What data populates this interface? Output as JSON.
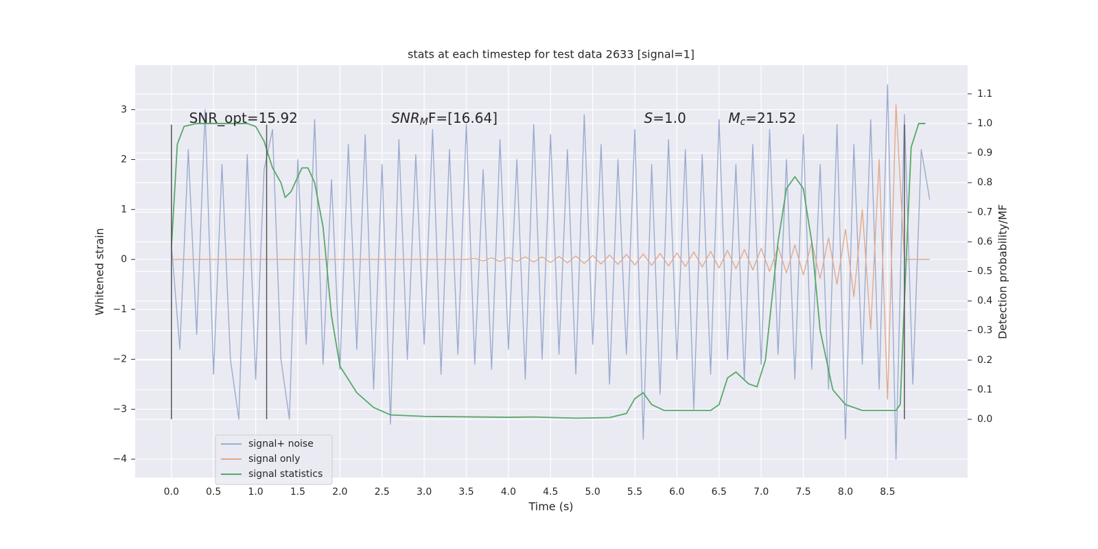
{
  "chart_data": {
    "type": "line",
    "title": "stats at each timestep for test data 2633 [signal=1]",
    "xlabel": "Time (s)",
    "ylabel": "Whitened strain",
    "y2label": "Detection probability/MF",
    "xlim": [
      -0.43,
      9.45
    ],
    "ylim": [
      -4.37,
      3.89
    ],
    "y2lim": [
      -0.197,
      1.197
    ],
    "xticks": [
      {
        "value": 0,
        "label": "0.0"
      },
      0.5,
      {
        "value": 1,
        "label": "1.0"
      },
      1.5,
      {
        "value": 2,
        "label": "2.0"
      },
      2.5,
      {
        "value": 3,
        "label": "3.0"
      },
      3.5,
      {
        "value": 4,
        "label": "4.0"
      },
      4.5,
      {
        "value": 5,
        "label": "5.0"
      },
      5.5,
      {
        "value": 6,
        "label": "6.0"
      },
      6.5,
      {
        "value": 7,
        "label": "7.0"
      },
      7.5,
      {
        "value": 8,
        "label": "8.0"
      },
      8.5
    ],
    "yticks": [
      {
        "value": -4,
        "label": "−4"
      },
      {
        "value": -3,
        "label": "−3"
      },
      {
        "value": -2,
        "label": "−2"
      },
      {
        "value": -1,
        "label": "−1"
      },
      0,
      1,
      2,
      3
    ],
    "y2ticks": [
      {
        "value": 0,
        "label": "0.0"
      },
      0.1,
      0.2,
      0.3,
      0.4,
      0.5,
      0.6,
      0.7,
      0.8,
      0.9,
      {
        "value": 1,
        "label": "1.0"
      },
      1.1
    ],
    "grid": true,
    "legend": "lower left",
    "x": [
      0,
      0.1,
      0.2,
      0.3,
      0.4,
      0.5,
      0.6,
      0.7,
      0.8,
      0.9,
      1,
      1.1,
      1.2,
      1.3,
      1.4,
      1.5,
      1.6,
      1.7,
      1.8,
      1.9,
      2,
      2.1,
      2.2,
      2.3,
      2.4,
      2.5,
      2.6,
      2.7,
      2.8,
      2.9,
      3,
      3.1,
      3.2,
      3.3,
      3.4,
      3.5,
      3.6,
      3.7,
      3.8,
      3.9,
      4,
      4.1,
      4.2,
      4.3,
      4.4,
      4.5,
      4.6,
      4.7,
      4.8,
      4.9,
      5,
      5.1,
      5.2,
      5.3,
      5.4,
      5.5,
      5.6,
      5.7,
      5.8,
      5.9,
      6,
      6.1,
      6.2,
      6.3,
      6.4,
      6.5,
      6.6,
      6.7,
      6.8,
      6.9,
      7,
      7.1,
      7.2,
      7.3,
      7.4,
      7.5,
      7.6,
      7.7,
      7.8,
      7.9,
      8,
      8.1,
      8.2,
      8.3,
      8.4,
      8.5,
      8.6,
      8.7,
      8.8,
      8.9,
      9
    ],
    "series": [
      {
        "name": "signal+ noise",
        "color": "#9aabcf",
        "values": [
          0.3,
          -1.8,
          2.2,
          -1.5,
          3.0,
          -2.3,
          1.9,
          -2.0,
          -3.2,
          2.1,
          -2.4,
          1.8,
          2.6,
          -2.0,
          -3.2,
          2.0,
          -1.7,
          2.8,
          -2.1,
          1.6,
          -2.2,
          2.3,
          -1.8,
          2.5,
          -2.6,
          1.9,
          -3.3,
          2.4,
          -2.0,
          2.1,
          -1.7,
          2.6,
          -2.3,
          2.2,
          -1.9,
          2.7,
          -2.1,
          1.8,
          -2.2,
          2.4,
          -1.8,
          2.0,
          -2.4,
          2.7,
          -2.0,
          2.5,
          -1.9,
          2.2,
          -2.3,
          2.9,
          -1.7,
          2.3,
          -2.5,
          2.0,
          -1.9,
          2.6,
          -3.6,
          1.9,
          -2.7,
          2.4,
          -2.0,
          2.2,
          -3.0,
          2.1,
          -2.3,
          2.8,
          -2.0,
          1.9,
          -2.4,
          2.3,
          -2.1,
          2.6,
          -1.9,
          2.0,
          -2.4,
          2.5,
          -2.2,
          1.9,
          -2.6,
          2.7,
          -3.6,
          2.3,
          -2.1,
          2.8,
          -2.6,
          3.5,
          -4.0,
          2.9,
          -2.5,
          2.2,
          1.2
        ]
      },
      {
        "name": "signal only",
        "color": "#e1a98b",
        "values": [
          0,
          0,
          0,
          0,
          0,
          0,
          0,
          0,
          0,
          0,
          0,
          0,
          0,
          0,
          0,
          0,
          0,
          0,
          0,
          0,
          0,
          0,
          0,
          0,
          0,
          0,
          0,
          0,
          0,
          0,
          0,
          0,
          0,
          0,
          0,
          0,
          0.02,
          -0.03,
          0.03,
          -0.04,
          0.04,
          -0.04,
          0.05,
          -0.05,
          0.05,
          -0.06,
          0.06,
          -0.07,
          0.07,
          -0.08,
          0.08,
          -0.09,
          0.09,
          -0.1,
          0.1,
          -0.11,
          0.11,
          -0.12,
          0.12,
          -0.13,
          0.13,
          -0.14,
          0.15,
          -0.15,
          0.16,
          -0.17,
          0.18,
          -0.19,
          0.2,
          -0.21,
          0.22,
          -0.24,
          0.25,
          -0.27,
          0.29,
          -0.31,
          0.34,
          -0.38,
          0.43,
          -0.5,
          0.6,
          -0.75,
          1.0,
          -1.4,
          2.0,
          -2.8,
          3.1,
          0,
          0,
          0,
          0
        ]
      },
      {
        "name": "signal statistics",
        "color": "#55a868",
        "axis": "y2",
        "x": [
          0,
          0.07,
          0.15,
          0.3,
          0.6,
          0.9,
          1.0,
          1.1,
          1.2,
          1.3,
          1.35,
          1.42,
          1.5,
          1.55,
          1.62,
          1.7,
          1.8,
          1.9,
          2.0,
          2.2,
          2.4,
          2.6,
          3.0,
          4.0,
          4.3,
          4.8,
          5.2,
          5.4,
          5.5,
          5.6,
          5.7,
          5.85,
          6.2,
          6.4,
          6.5,
          6.6,
          6.7,
          6.85,
          6.95,
          7.05,
          7.2,
          7.3,
          7.4,
          7.5,
          7.6,
          7.7,
          7.85,
          8.0,
          8.2,
          8.5,
          8.6,
          8.65,
          8.7,
          8.78,
          8.87,
          8.95
        ],
        "values": [
          0.58,
          0.93,
          0.99,
          1.0,
          1.0,
          1.0,
          0.99,
          0.94,
          0.85,
          0.8,
          0.75,
          0.77,
          0.82,
          0.85,
          0.85,
          0.8,
          0.65,
          0.35,
          0.18,
          0.09,
          0.04,
          0.015,
          0.01,
          0.007,
          0.008,
          0.004,
          0.006,
          0.02,
          0.07,
          0.09,
          0.05,
          0.03,
          0.03,
          0.03,
          0.05,
          0.14,
          0.16,
          0.12,
          0.11,
          0.2,
          0.6,
          0.78,
          0.82,
          0.78,
          0.6,
          0.3,
          0.1,
          0.05,
          0.03,
          0.03,
          0.03,
          0.05,
          0.4,
          0.92,
          1.0,
          1.0
        ]
      }
    ],
    "vlines": {
      "x": [
        0,
        1.13,
        8.7
      ],
      "ymin": -3.2,
      "ymax": 2.7,
      "color": "#555555"
    },
    "annotations": [
      {
        "parts": [
          "SNR_opt=15.92"
        ],
        "x": 0.21,
        "y": 2.82
      },
      {
        "parts": [
          "SNR",
          "M",
          "F=[16.64]"
        ],
        "x": 2.61,
        "y": 2.82
      },
      {
        "parts": [
          "S",
          "=1.0"
        ],
        "x": 5.61,
        "y": 2.82
      },
      {
        "parts": [
          "M",
          "c",
          "=21.52"
        ],
        "x": 6.61,
        "y": 2.82
      }
    ]
  }
}
